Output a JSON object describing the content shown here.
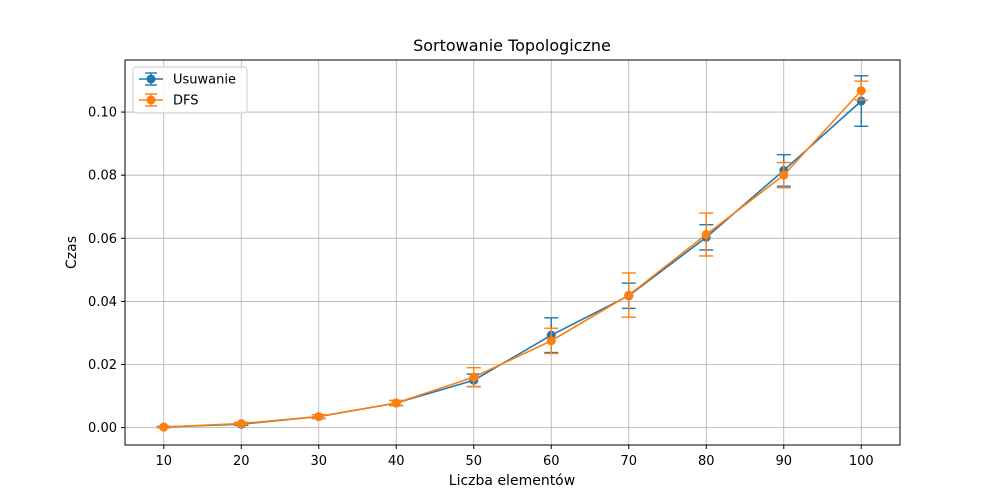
{
  "chart_data": {
    "type": "line",
    "title": "Sortowanie Topologiczne",
    "xlabel": "Liczba elementów",
    "ylabel": "Czas",
    "x": [
      10,
      20,
      30,
      40,
      50,
      60,
      70,
      80,
      90,
      100
    ],
    "xlim": [
      5,
      105
    ],
    "ylim": [
      -0.0055,
      0.1165
    ],
    "xticks": [
      10,
      20,
      30,
      40,
      50,
      60,
      70,
      80,
      90,
      100
    ],
    "yticks": [
      0.0,
      0.02,
      0.04,
      0.06,
      0.08,
      0.1
    ],
    "ytick_labels": [
      "0.00",
      "0.02",
      "0.04",
      "0.06",
      "0.08",
      "0.10"
    ],
    "grid": true,
    "legend_position": "top-left",
    "series": [
      {
        "name": "Usuwanie",
        "color": "#1f77b4",
        "values": [
          0.0002,
          0.0011,
          0.0035,
          0.0078,
          0.015,
          0.0293,
          0.0418,
          0.0603,
          0.0815,
          0.1035
        ],
        "errors": [
          0.0002,
          0.0004,
          0.0006,
          0.0008,
          0.002,
          0.0055,
          0.004,
          0.004,
          0.005,
          0.008
        ]
      },
      {
        "name": "DFS",
        "color": "#ff7f0e",
        "values": [
          0.0002,
          0.0013,
          0.0035,
          0.0078,
          0.016,
          0.0275,
          0.042,
          0.0612,
          0.08,
          0.1068
        ],
        "errors": [
          0.0002,
          0.0004,
          0.0006,
          0.0008,
          0.003,
          0.004,
          0.007,
          0.0068,
          0.004,
          0.003
        ]
      }
    ]
  }
}
